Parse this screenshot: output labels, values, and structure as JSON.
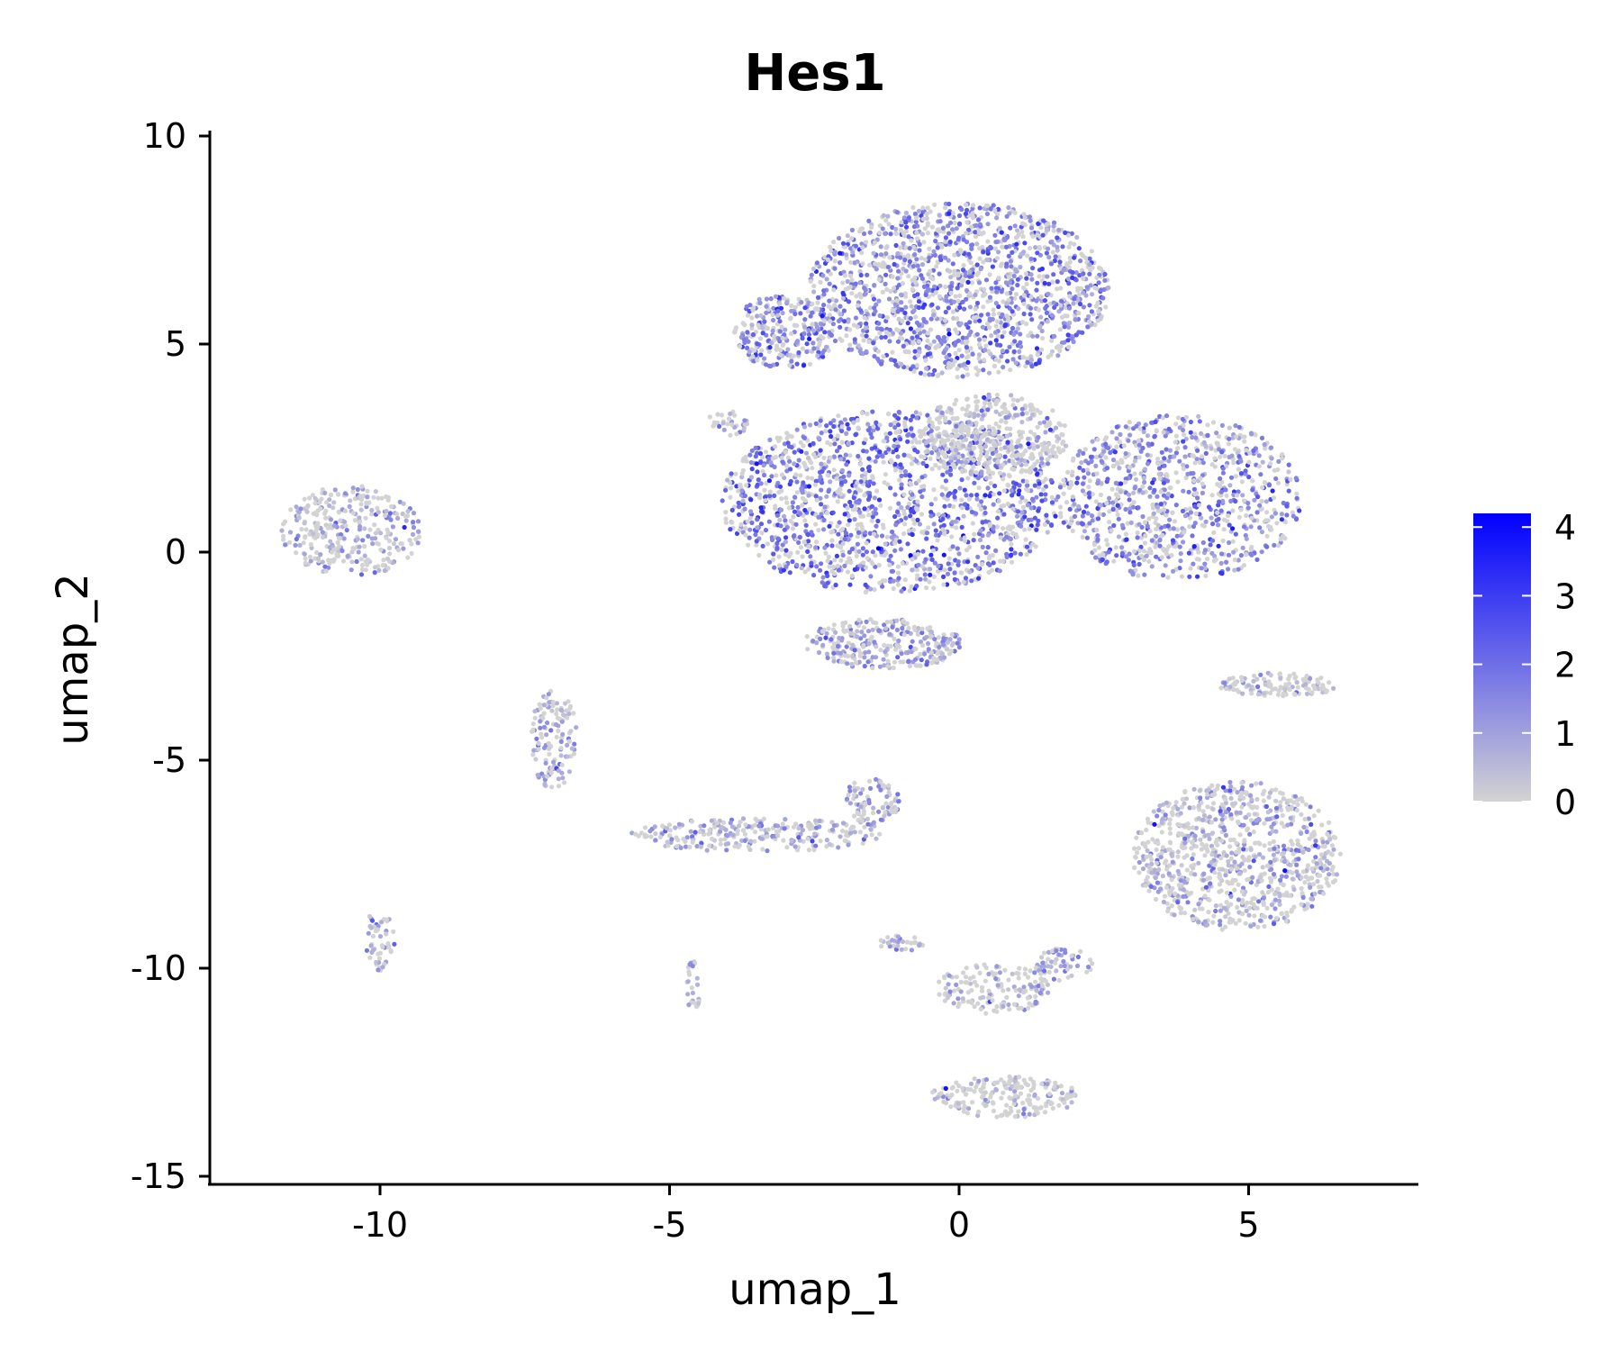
{
  "chart_data": {
    "type": "scatter",
    "title": "Hes1",
    "xlabel": "umap_1",
    "ylabel": "umap_2",
    "xlim": [
      -13,
      8
    ],
    "ylim": [
      -15,
      10
    ],
    "x_ticks": [
      -10,
      -5,
      0,
      5
    ],
    "y_ticks": [
      10,
      5,
      0,
      -5,
      -10,
      -15
    ],
    "x_tick_labels": [
      "-10",
      "-5",
      "0",
      "5"
    ],
    "y_tick_labels": [
      "10",
      "5",
      "0",
      "-5",
      "-10",
      "-15"
    ],
    "grid": false,
    "color_scale": {
      "low_color": "#d3d3d3",
      "high_color": "#0000ff",
      "min": 0,
      "max": 4.2,
      "ticks": [
        0,
        1,
        2,
        3,
        4
      ],
      "tick_labels": [
        "0",
        "1",
        "2",
        "3",
        "4"
      ],
      "placement": "right"
    },
    "clusters": [
      {
        "cx": 0.0,
        "cy": 6.3,
        "rx": 2.6,
        "ry": 2.1,
        "n": 1500,
        "expr": 1.6
      },
      {
        "cx": -3.0,
        "cy": 5.3,
        "rx": 0.9,
        "ry": 0.9,
        "n": 260,
        "expr": 1.6
      },
      {
        "cx": -1.2,
        "cy": 1.2,
        "rx": 2.9,
        "ry": 2.2,
        "n": 1500,
        "expr": 1.9
      },
      {
        "cx": 0.6,
        "cy": 2.8,
        "rx": 1.3,
        "ry": 1.0,
        "n": 400,
        "expr": 0.3
      },
      {
        "cx": 3.8,
        "cy": 1.3,
        "rx": 2.1,
        "ry": 2.0,
        "n": 900,
        "expr": 1.5
      },
      {
        "cx": -1.3,
        "cy": -2.2,
        "rx": 1.4,
        "ry": 0.6,
        "n": 300,
        "expr": 1.0
      },
      {
        "cx": 4.8,
        "cy": -7.3,
        "rx": 1.8,
        "ry": 1.8,
        "n": 900,
        "expr": 0.6
      },
      {
        "cx": 5.5,
        "cy": -3.2,
        "rx": 1.0,
        "ry": 0.3,
        "n": 120,
        "expr": 0.3
      },
      {
        "cx": -10.5,
        "cy": 0.5,
        "rx": 1.2,
        "ry": 1.1,
        "n": 320,
        "expr": 0.6
      },
      {
        "cx": -10.0,
        "cy": -9.3,
        "rx": 0.25,
        "ry": 0.8,
        "n": 50,
        "expr": 0.9
      },
      {
        "cx": -7.0,
        "cy": -4.5,
        "rx": 0.4,
        "ry": 1.2,
        "n": 130,
        "expr": 0.8
      },
      {
        "cx": -3.5,
        "cy": -6.8,
        "rx": 2.2,
        "ry": 0.4,
        "n": 260,
        "expr": 0.6
      },
      {
        "cx": -1.5,
        "cy": -6.0,
        "rx": 0.5,
        "ry": 0.6,
        "n": 90,
        "expr": 1.0
      },
      {
        "cx": -4.6,
        "cy": -10.4,
        "rx": 0.15,
        "ry": 0.6,
        "n": 25,
        "expr": 0.8
      },
      {
        "cx": -4.0,
        "cy": 3.1,
        "rx": 0.4,
        "ry": 0.3,
        "n": 30,
        "expr": 0.9
      },
      {
        "cx": 0.6,
        "cy": -10.5,
        "rx": 1.0,
        "ry": 0.6,
        "n": 150,
        "expr": 0.3
      },
      {
        "cx": 1.8,
        "cy": -9.9,
        "rx": 0.5,
        "ry": 0.4,
        "n": 60,
        "expr": 1.0
      },
      {
        "cx": -1.0,
        "cy": -9.4,
        "rx": 0.4,
        "ry": 0.2,
        "n": 30,
        "expr": 0.8
      },
      {
        "cx": 0.8,
        "cy": -13.1,
        "rx": 1.3,
        "ry": 0.5,
        "n": 200,
        "expr": 0.1
      }
    ]
  }
}
